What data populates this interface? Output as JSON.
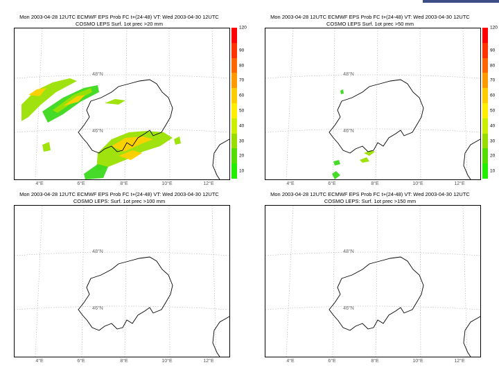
{
  "panels": [
    {
      "id": "p1",
      "title_line1": "Mon 2003-04-28 12UTC ECMWF EPS Prob FC t+(24-48) VT: Wed 2003-04-30 12UTC",
      "title_line2": "COSMO LEPS Surf. 1ot prec >20 mm",
      "threshold": "20 mm",
      "has_colorbar": true,
      "precip_shown": true
    },
    {
      "id": "p2",
      "title_line1": "Mon 2003-04-28 12UTC ECMWF EPS Prob FC t+(24-48) VT: Wed 2003-04-30 12UTC",
      "title_line2": "COSMO LEPS Surf. 1ot prec >50 mm",
      "threshold": "50 mm",
      "has_colorbar": true,
      "precip_shown": true
    },
    {
      "id": "p3",
      "title_line1": "Mon 2003-04-28 12UTC ECMWF EPS Prob FC t+(24-48) VT: Wed 2003-04-30 12UTC",
      "title_line2": "COSMO LEPS: Surf. 1ot prec >100 mm",
      "threshold": "100 mm",
      "has_colorbar": false,
      "precip_shown": false
    },
    {
      "id": "p4",
      "title_line1": "Mon 2003-04-28 12UTC ECMWF EPS Prob FC t+(24-48) VT: Wed 2003-04-30 12UTC",
      "title_line2": "COSMO LEPS: Surf. 1ot prec >150 mm",
      "threshold": "150 mm",
      "has_colorbar": false,
      "precip_shown": false
    }
  ],
  "lon_labels": [
    "4°E",
    "6°E",
    "8°E",
    "10°E",
    "12°E"
  ],
  "lat_labels": [
    "48°N",
    "46°N"
  ],
  "colorbar": {
    "labels": [
      "120",
      "90",
      "80",
      "70",
      "60",
      "50",
      "40",
      "30",
      "20",
      "10"
    ],
    "colors": [
      "#ff0000",
      "#ff3300",
      "#ff6600",
      "#ff9900",
      "#ffcc00",
      "#ffee00",
      "#ccee00",
      "#99dd00",
      "#55dd00",
      "#22ee00"
    ]
  },
  "colors": {
    "coast": "#000000",
    "grid": "#b0b0b0",
    "precip_high": "#ffd000",
    "precip_mid": "#9be000",
    "precip_low": "#3cd81e"
  }
}
